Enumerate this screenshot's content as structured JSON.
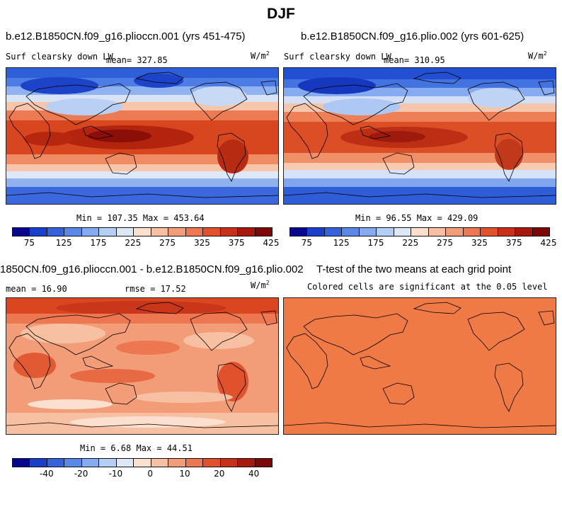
{
  "figure_title": "DJF",
  "panels": {
    "top_left": {
      "title": "b.e12.B1850CN.f09_g16.plioccn.001 (yrs 451-475)",
      "variable": "Surf clearsky down LW",
      "mean_text": "mean= 327.85",
      "units": "W/m",
      "units_exp": "2",
      "minmax": "Min = 107.35 Max = 453.64"
    },
    "top_right": {
      "title": "b.e12.B1850CN.f09_g16.plio.002 (yrs 601-625)",
      "variable": "Surf clearsky down LW",
      "mean_text": "mean= 310.95",
      "units": "W/m",
      "units_exp": "2",
      "minmax": "Min =  96.55 Max = 429.09"
    },
    "bottom_left": {
      "title": "1850CN.f09_g16.plioccn.001 - b.e12.B1850CN.f09_g16.plio.002",
      "mean_text": "mean =  16.90",
      "rmse_text": "rmse =  17.52",
      "units": "W/m",
      "units_exp": "2",
      "minmax": "Min =   6.68 Max =  44.51"
    },
    "bottom_right": {
      "title": "T-test of the two means at each grid point",
      "subtitle": "Colored cells are significant at the 0.05 level"
    }
  },
  "colorbar_top": {
    "ticks": [
      "75",
      "125",
      "175",
      "225",
      "275",
      "325",
      "375",
      "425"
    ],
    "colors": [
      "#08088e",
      "#1a3fcb",
      "#3563dc",
      "#5a88e8",
      "#86abf0",
      "#b5cef5",
      "#dde8f7",
      "#fbe0d0",
      "#f7c0a2",
      "#f29d78",
      "#ec7750",
      "#e0512c",
      "#c8301a",
      "#a8180f",
      "#7e0808"
    ]
  },
  "colorbar_bottom": {
    "ticks": [
      "-40",
      "-20",
      "-10",
      "0",
      "10",
      "20",
      "40"
    ],
    "colors": [
      "#08088e",
      "#1a3fcb",
      "#3563dc",
      "#5a88e8",
      "#86abf0",
      "#b5cef5",
      "#dde8f7",
      "#fbe0d0",
      "#f7c0a2",
      "#f29d78",
      "#ec7750",
      "#e0512c",
      "#c8301a",
      "#a8180f",
      "#7e0808"
    ]
  }
}
